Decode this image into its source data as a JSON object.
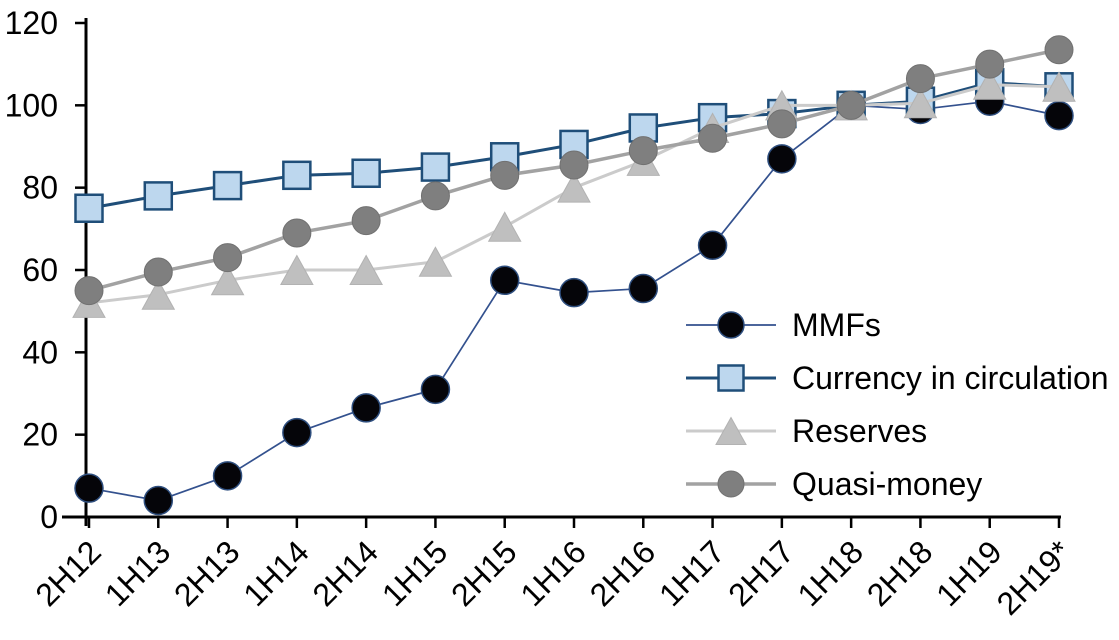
{
  "page": {
    "background": "#FFFFFF"
  },
  "chart_data": {
    "type": "line",
    "title": "",
    "xlabel": "",
    "ylabel": "",
    "categories": [
      "2H12",
      "1H13",
      "2H13",
      "1H14",
      "2H14",
      "1H15",
      "2H15",
      "1H16",
      "2H16",
      "1H17",
      "2H17",
      "1H18",
      "2H18",
      "1H19",
      "2H19*"
    ],
    "series": [
      {
        "name": "MMFs",
        "marker": "circle",
        "marker_size": 28,
        "marker_fill": "#050509",
        "marker_stroke": "#2E4E7E",
        "marker_stroke_width": 1.5,
        "line_color": "#33518E",
        "line_width": 1.7,
        "values": [
          7,
          4,
          10,
          20.5,
          26.5,
          31,
          57.5,
          54.5,
          55.5,
          66,
          87,
          100,
          99,
          101,
          97.5
        ]
      },
      {
        "name": "Currency in circulation",
        "marker": "square",
        "marker_size": 27,
        "marker_fill": "#BDD7EE",
        "marker_stroke": "#1F4E79",
        "marker_stroke_width": 2.5,
        "line_color": "#1F4E79",
        "line_width": 3,
        "values": [
          75,
          78,
          80.5,
          83,
          83.5,
          85,
          87.5,
          90.5,
          94.5,
          97,
          98,
          100,
          101,
          105.5,
          104.5
        ]
      },
      {
        "name": "Reserves",
        "marker": "triangle",
        "marker_size": 29,
        "marker_fill": "#BFBFBF",
        "marker_stroke": "#B2B2B2",
        "marker_stroke_width": 1,
        "line_color": "#CBCBCB",
        "line_width": 3,
        "values": [
          52,
          54,
          57.5,
          60,
          60,
          62,
          70.5,
          80,
          86.5,
          94.5,
          100,
          100,
          100.5,
          105,
          104.5
        ]
      },
      {
        "name": "Quasi-money",
        "marker": "circle",
        "marker_size": 28,
        "marker_fill": "#7F7F7F",
        "marker_stroke": "#717171",
        "marker_stroke_width": 1,
        "line_color": "#A2A2A2",
        "line_width": 3.5,
        "values": [
          55,
          59.5,
          63,
          69,
          72,
          78,
          83,
          85.5,
          89,
          92,
          95.5,
          100,
          106.5,
          110,
          113.5
        ]
      }
    ],
    "ylim": [
      0,
      120
    ],
    "yticks": [
      0,
      20,
      40,
      60,
      80,
      100,
      120
    ],
    "grid": false,
    "legend_position": "inside-right",
    "axis_color": "#000000",
    "tick_label_color": "#000000"
  }
}
